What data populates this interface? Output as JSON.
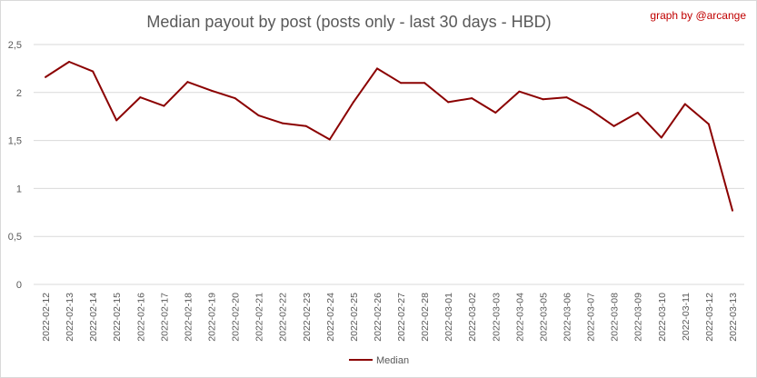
{
  "chart_data": {
    "type": "line",
    "title": "Median payout by post (posts only - last 30 days - HBD)",
    "credit": "graph by @arcange",
    "xlabel": "",
    "ylabel": "",
    "ylim": [
      0,
      2.5
    ],
    "yticks": [
      0,
      0.5,
      1,
      1.5,
      2,
      2.5
    ],
    "ytick_labels": [
      "0",
      "0,5",
      "1",
      "1,5",
      "2",
      "2,5"
    ],
    "grid": true,
    "legend": "bottom",
    "x": [
      "2022-02-12",
      "2022-02-13",
      "2022-02-14",
      "2022-02-15",
      "2022-02-16",
      "2022-02-17",
      "2022-02-18",
      "2022-02-19",
      "2022-02-20",
      "2022-02-21",
      "2022-02-22",
      "2022-02-23",
      "2022-02-24",
      "2022-02-25",
      "2022-02-26",
      "2022-02-27",
      "2022-02-28",
      "2022-03-01",
      "2022-03-02",
      "2022-03-03",
      "2022-03-04",
      "2022-03-05",
      "2022-03-06",
      "2022-03-07",
      "2022-03-08",
      "2022-03-09",
      "2022-03-10",
      "2022-03-11",
      "2022-03-12",
      "2022-03-13"
    ],
    "series": [
      {
        "name": "Median",
        "color": "#8b0000",
        "values": [
          2.16,
          2.32,
          2.22,
          1.71,
          1.95,
          1.86,
          2.11,
          2.02,
          1.94,
          1.76,
          1.68,
          1.65,
          1.51,
          1.9,
          2.25,
          2.1,
          2.1,
          1.9,
          1.94,
          1.79,
          2.01,
          1.93,
          1.95,
          1.82,
          1.65,
          1.79,
          1.53,
          1.88,
          1.67,
          0.77
        ]
      }
    ]
  }
}
